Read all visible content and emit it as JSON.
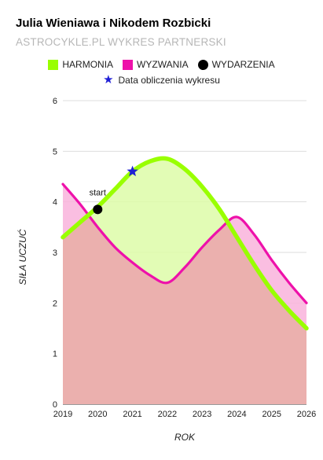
{
  "header": {
    "title": "Julia Wieniawa i Nikodem Rozbicki",
    "subtitle": "ASTROCYKLE.PL WYKRES PARTNERSKI"
  },
  "legend": {
    "harmonia": "HARMONIA",
    "wyzwania": "WYZWANIA",
    "wydarzenia": "WYDARZENIA",
    "data_obliczenia": "Data obliczenia wykresu"
  },
  "colors": {
    "harmonia_line": "#99ff00",
    "harmonia_fill": "#ddfca8",
    "wyzwania_line": "#ee11aa",
    "wyzwania_fill": "#f9b3dc",
    "overlap_fill": "#ebb0ae",
    "grid": "#dddddd",
    "star": "#1f1fd6"
  },
  "chart_data": {
    "type": "area",
    "title": "Julia Wieniawa i Nikodem Rozbicki",
    "subtitle": "ASTROCYKLE.PL WYKRES PARTNERSKI",
    "xlabel": "ROK",
    "ylabel": "SIŁA UCZUĆ",
    "xlim": [
      2019,
      2026
    ],
    "ylim": [
      0,
      6
    ],
    "x_ticks": [
      "2019",
      "2020",
      "2021",
      "2022",
      "2023",
      "2024",
      "2025",
      "2026"
    ],
    "y_ticks": [
      "0",
      "1",
      "2",
      "3",
      "4",
      "5",
      "6"
    ],
    "grid": true,
    "legend_position": "top",
    "series": [
      {
        "name": "HARMONIA",
        "x": [
          2019,
          2019.5,
          2020,
          2020.5,
          2021,
          2021.5,
          2022,
          2022.5,
          2023,
          2023.5,
          2024,
          2024.5,
          2025,
          2025.5,
          2026
        ],
        "y": [
          3.3,
          3.6,
          3.9,
          4.25,
          4.6,
          4.8,
          4.85,
          4.65,
          4.3,
          3.85,
          3.3,
          2.75,
          2.25,
          1.85,
          1.5
        ]
      },
      {
        "name": "WYZWANIA",
        "x": [
          2019,
          2019.5,
          2020,
          2020.5,
          2021,
          2021.5,
          2022,
          2022.5,
          2023,
          2023.5,
          2024,
          2024.5,
          2025,
          2025.5,
          2026
        ],
        "y": [
          4.35,
          3.95,
          3.5,
          3.1,
          2.8,
          2.55,
          2.4,
          2.7,
          3.1,
          3.45,
          3.7,
          3.35,
          2.85,
          2.4,
          2.0
        ]
      }
    ],
    "events": [
      {
        "label": "start",
        "x": 2020,
        "y": 3.85
      }
    ],
    "calculation_date": {
      "x": 2021,
      "y": 4.6
    }
  }
}
